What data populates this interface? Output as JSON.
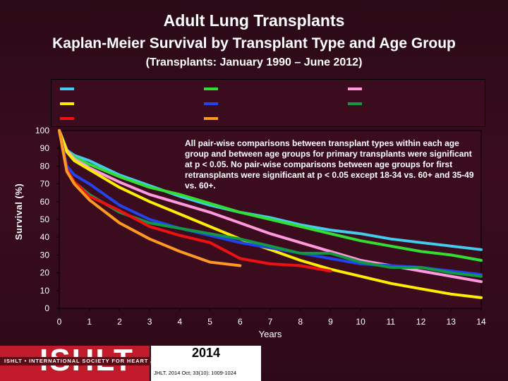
{
  "header": {
    "title": "Adult Lung Transplants",
    "subtitle": "Kaplan-Meier Survival by Transplant Type and Age Group",
    "subtitle2": "(Transplants: January 1990 – June 2012)"
  },
  "annotation": "All pair-wise comparisons between transplant types within each age group and between age groups for primary transplants were significant at p < 0.05. No pair-wise comparisons between age groups for first retransplants were significant at p < 0.05 except 18-34 vs. 60+ and 35-49 vs. 60+.",
  "footer": {
    "logo_text": "ISHLT",
    "logo_subtext": "ISHLT • INTERNATIONAL SOCIETY FOR HEART AND LUNG TRANSPLANTATION",
    "year": "2014",
    "citation": "JHLT. 2014 Oct; 33(10): 1009-1024"
  },
  "chart_data": {
    "type": "line",
    "xlabel": "Years",
    "ylabel": "Survival (%)",
    "xlim": [
      0,
      14
    ],
    "ylim": [
      0,
      100
    ],
    "x_ticks": [
      "0",
      "1",
      "2",
      "3",
      "4",
      "5",
      "6",
      "7",
      "8",
      "9",
      "10",
      "11",
      "12",
      "13",
      "14"
    ],
    "y_ticks": [
      "0",
      "10",
      "20",
      "30",
      "40",
      "50",
      "60",
      "70",
      "80",
      "90",
      "100"
    ],
    "legend_colors": [
      "#44ccee",
      "#33dd33",
      "#ff99dd",
      "#ffee00",
      "#2244ee",
      "#119944",
      "#ee1111",
      "#ff9922"
    ],
    "series": [
      {
        "color": "#44ccee",
        "points": [
          [
            0,
            100
          ],
          [
            0.25,
            89
          ],
          [
            0.5,
            86
          ],
          [
            1,
            83
          ],
          [
            2,
            75
          ],
          [
            3,
            69
          ],
          [
            4,
            63
          ],
          [
            5,
            58
          ],
          [
            6,
            54
          ],
          [
            7,
            51
          ],
          [
            8,
            47
          ],
          [
            9,
            44
          ],
          [
            10,
            42
          ],
          [
            11,
            39
          ],
          [
            12,
            37
          ],
          [
            13,
            35
          ],
          [
            14,
            33
          ]
        ]
      },
      {
        "color": "#33dd33",
        "points": [
          [
            0,
            100
          ],
          [
            0.25,
            89
          ],
          [
            0.5,
            85
          ],
          [
            1,
            81
          ],
          [
            2,
            74
          ],
          [
            3,
            68
          ],
          [
            4,
            64
          ],
          [
            5,
            59
          ],
          [
            6,
            54
          ],
          [
            7,
            50
          ],
          [
            8,
            46
          ],
          [
            9,
            42
          ],
          [
            10,
            38
          ],
          [
            11,
            35
          ],
          [
            12,
            32
          ],
          [
            13,
            30
          ],
          [
            14,
            27
          ]
        ]
      },
      {
        "color": "#ff99dd",
        "points": [
          [
            0,
            100
          ],
          [
            0.25,
            89
          ],
          [
            0.5,
            84
          ],
          [
            1,
            79
          ],
          [
            2,
            71
          ],
          [
            3,
            64
          ],
          [
            4,
            59
          ],
          [
            5,
            54
          ],
          [
            6,
            48
          ],
          [
            7,
            42
          ],
          [
            8,
            37
          ],
          [
            9,
            32
          ],
          [
            10,
            27
          ],
          [
            11,
            24
          ],
          [
            12,
            21
          ],
          [
            13,
            18
          ],
          [
            14,
            15
          ]
        ]
      },
      {
        "color": "#ffee00",
        "points": [
          [
            0,
            100
          ],
          [
            0.25,
            88
          ],
          [
            0.5,
            83
          ],
          [
            1,
            78
          ],
          [
            2,
            68
          ],
          [
            3,
            60
          ],
          [
            4,
            53
          ],
          [
            5,
            46
          ],
          [
            6,
            39
          ],
          [
            7,
            33
          ],
          [
            8,
            27
          ],
          [
            9,
            22
          ],
          [
            10,
            18
          ],
          [
            11,
            14
          ],
          [
            12,
            11
          ],
          [
            13,
            8
          ],
          [
            14,
            6
          ]
        ]
      },
      {
        "color": "#2244ee",
        "points": [
          [
            0,
            100
          ],
          [
            0.25,
            80
          ],
          [
            0.5,
            75
          ],
          [
            1,
            70
          ],
          [
            2,
            58
          ],
          [
            3,
            50
          ],
          [
            4,
            45
          ],
          [
            5,
            41
          ],
          [
            6,
            37
          ],
          [
            7,
            34
          ],
          [
            8,
            31
          ],
          [
            9,
            28
          ],
          [
            10,
            25
          ],
          [
            11,
            24
          ],
          [
            12,
            23
          ],
          [
            13,
            21
          ],
          [
            14,
            19
          ]
        ]
      },
      {
        "color": "#119944",
        "points": [
          [
            0,
            100
          ],
          [
            0.25,
            78
          ],
          [
            0.5,
            71
          ],
          [
            1,
            64
          ],
          [
            2,
            54
          ],
          [
            3,
            48
          ],
          [
            4,
            45
          ],
          [
            5,
            42
          ],
          [
            6,
            39
          ],
          [
            7,
            35
          ],
          [
            8,
            31
          ],
          [
            9,
            31
          ],
          [
            10,
            26
          ],
          [
            11,
            23
          ],
          [
            12,
            23
          ],
          [
            13,
            20
          ],
          [
            14,
            18
          ]
        ]
      },
      {
        "color": "#ee1111",
        "points": [
          [
            0,
            100
          ],
          [
            0.25,
            78
          ],
          [
            0.5,
            71
          ],
          [
            1,
            63
          ],
          [
            2,
            55
          ],
          [
            3,
            46
          ],
          [
            4,
            41
          ],
          [
            5,
            37
          ],
          [
            6,
            28
          ],
          [
            7,
            25
          ],
          [
            8,
            24
          ],
          [
            9,
            21
          ]
        ]
      },
      {
        "color": "#ff9922",
        "points": [
          [
            0,
            100
          ],
          [
            0.25,
            77
          ],
          [
            0.5,
            70
          ],
          [
            1,
            61
          ],
          [
            2,
            48
          ],
          [
            3,
            39
          ],
          [
            4,
            32
          ],
          [
            5,
            26
          ],
          [
            6,
            24
          ]
        ]
      }
    ]
  }
}
